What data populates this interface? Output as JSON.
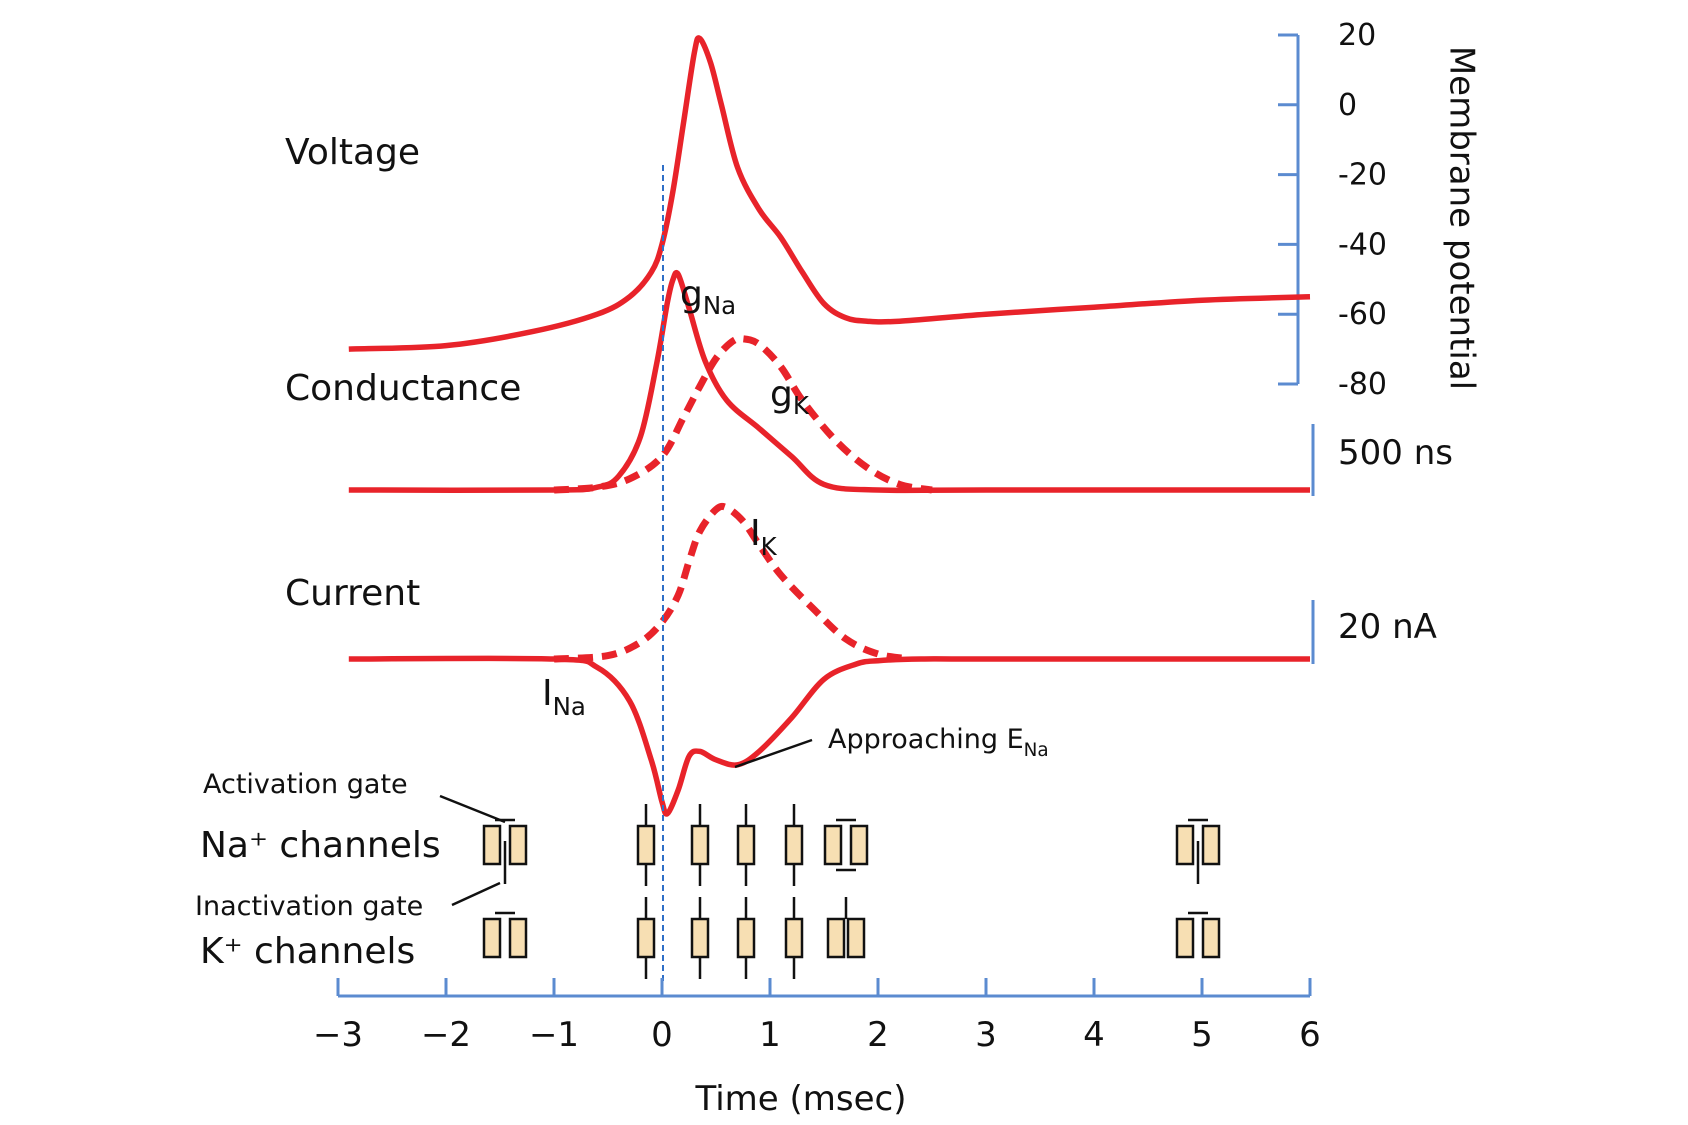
{
  "colors": {
    "trace": "#e8232a",
    "axis": "#5b8bd0",
    "guide": "#2f6fc7",
    "gate_fill": "#f7dfb3",
    "gate_stroke": "#111111"
  },
  "row_labels": {
    "voltage": "Voltage",
    "conductance": "Conductance",
    "current": "Current",
    "na_channels": "Na⁺ channels",
    "k_channels": "K⁺ channels"
  },
  "gate_labels": {
    "activation": "Activation gate",
    "inactivation": "Inactivation gate"
  },
  "trace_labels": {
    "gNa_main": "g",
    "gNa_sub": "Na",
    "gK_main": "g",
    "gK_sub": "K",
    "IK_main": "I",
    "IK_sub": "K",
    "INa_main": "I",
    "INa_sub": "Na",
    "approach_main": "Approaching E",
    "approach_sub": "Na"
  },
  "scales": {
    "conductance": "500 ns",
    "current": "20 nA"
  },
  "chart_data": {
    "type": "line",
    "xlabel": "Time (msec)",
    "xlim": [
      -3,
      6
    ],
    "x_ticks": [
      -3,
      -2,
      -1,
      0,
      1,
      2,
      3,
      4,
      5,
      6
    ],
    "x_tick_labels": [
      "−3",
      "−2",
      "−1",
      "0",
      "1",
      "2",
      "3",
      "4",
      "5",
      "6"
    ],
    "voltage_axis": {
      "label": "Membrane potential",
      "ylim": [
        -80,
        20
      ],
      "ticks": [
        20,
        0,
        -20,
        -40,
        -60,
        -80
      ],
      "tick_labels": [
        "20",
        "0",
        "-20",
        "-40",
        "-60",
        "-80"
      ]
    },
    "series": [
      {
        "panel": "voltage",
        "style": "solid",
        "x": [
          -2.9,
          -2.0,
          -1.2,
          -0.6,
          -0.3,
          -0.1,
          0.0,
          0.1,
          0.2,
          0.3,
          0.35,
          0.45,
          0.55,
          0.7,
          0.9,
          1.1,
          1.3,
          1.5,
          1.7,
          1.9,
          2.2,
          3.0,
          4.0,
          5.0,
          6.0
        ],
        "y": [
          -70,
          -69,
          -65,
          -60,
          -55,
          -48,
          -40,
          -25,
          -5,
          15,
          19,
          12,
          0,
          -18,
          -30,
          -38,
          -48,
          -57,
          -61,
          -62,
          -62,
          -60,
          -58,
          -56,
          -55
        ]
      },
      {
        "panel": "conductance",
        "name": "gNa",
        "style": "solid",
        "x": [
          -2.9,
          -1.0,
          -0.6,
          -0.4,
          -0.2,
          -0.05,
          0.05,
          0.1,
          0.15,
          0.25,
          0.4,
          0.6,
          0.9,
          1.2,
          1.5,
          2.0,
          3.0,
          6.0
        ],
        "y": [
          0,
          0,
          0.01,
          0.05,
          0.19,
          0.45,
          0.67,
          0.75,
          0.77,
          0.65,
          0.46,
          0.32,
          0.22,
          0.12,
          0.02,
          0,
          0,
          0
        ]
      },
      {
        "panel": "conductance",
        "name": "gK",
        "style": "dashed",
        "x": [
          -1.0,
          -0.6,
          -0.3,
          0.0,
          0.2,
          0.35,
          0.5,
          0.65,
          0.75,
          0.9,
          1.1,
          1.3,
          1.6,
          1.9,
          2.2,
          2.5
        ],
        "y": [
          0,
          0.01,
          0.04,
          0.12,
          0.26,
          0.37,
          0.47,
          0.53,
          0.54,
          0.52,
          0.44,
          0.32,
          0.18,
          0.08,
          0.02,
          0
        ]
      },
      {
        "panel": "current",
        "name": "IK",
        "style": "dashed",
        "x": [
          -1.0,
          -0.5,
          -0.2,
          0.0,
          0.15,
          0.25,
          0.35,
          0.5,
          0.6,
          0.75,
          0.9,
          1.1,
          1.4,
          1.7,
          2.0,
          2.3
        ],
        "y": [
          0,
          0.02,
          0.1,
          0.22,
          0.38,
          0.58,
          0.76,
          0.89,
          0.9,
          0.82,
          0.68,
          0.5,
          0.3,
          0.12,
          0.03,
          0
        ]
      },
      {
        "panel": "current",
        "name": "INa",
        "style": "solid",
        "x": [
          -2.9,
          -1.0,
          -0.6,
          -0.3,
          -0.1,
          0.0,
          0.05,
          0.15,
          0.25,
          0.35,
          0.5,
          0.7,
          0.9,
          1.2,
          1.5,
          1.8,
          2.0,
          2.4,
          3.0,
          6.0
        ],
        "y": [
          0,
          0,
          -0.05,
          -0.25,
          -0.6,
          -0.85,
          -0.92,
          -0.78,
          -0.58,
          -0.55,
          -0.6,
          -0.63,
          -0.55,
          -0.35,
          -0.12,
          -0.03,
          -0.01,
          0,
          0,
          0
        ]
      }
    ]
  }
}
